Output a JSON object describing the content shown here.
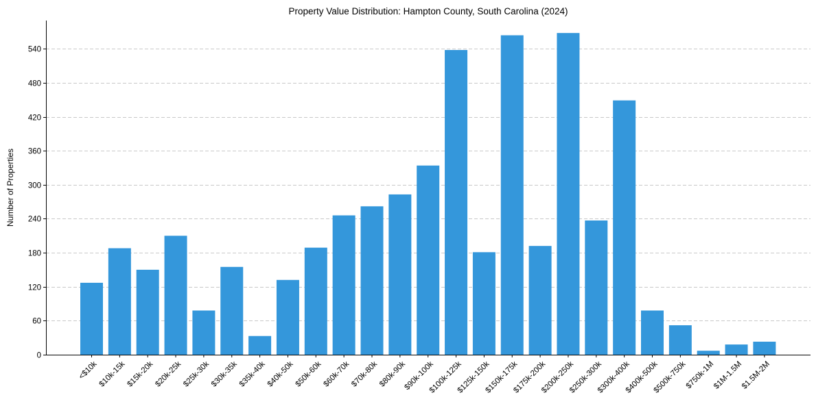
{
  "chart_data": {
    "type": "bar",
    "title": "Property Value Distribution: Hampton County, South Carolina (2024)",
    "xlabel": "",
    "ylabel": "Number of Properties",
    "ylim": [
      0,
      590
    ],
    "yticks": [
      0,
      60,
      120,
      180,
      240,
      300,
      360,
      420,
      480,
      540
    ],
    "grid": "y-dashed",
    "bar_color": "#3497db",
    "categories": [
      "<$10k",
      "$10k-15k",
      "$15k-20k",
      "$20k-25k",
      "$25k-30k",
      "$30k-35k",
      "$35k-40k",
      "$40k-50k",
      "$50k-60k",
      "$60k-70k",
      "$70k-80k",
      "$80k-90k",
      "$90k-100k",
      "$100k-125k",
      "$125k-150k",
      "$150k-175k",
      "$175k-200k",
      "$200k-250k",
      "$250k-300k",
      "$300k-400k",
      "$400k-500k",
      "$500k-750k",
      "$750k-1M",
      "$1M-1.5M",
      "$1.5M-2M"
    ],
    "values": [
      127,
      188,
      150,
      210,
      78,
      155,
      33,
      132,
      189,
      246,
      262,
      283,
      334,
      538,
      181,
      564,
      192,
      568,
      237,
      449,
      78,
      52,
      7,
      18,
      23
    ]
  }
}
